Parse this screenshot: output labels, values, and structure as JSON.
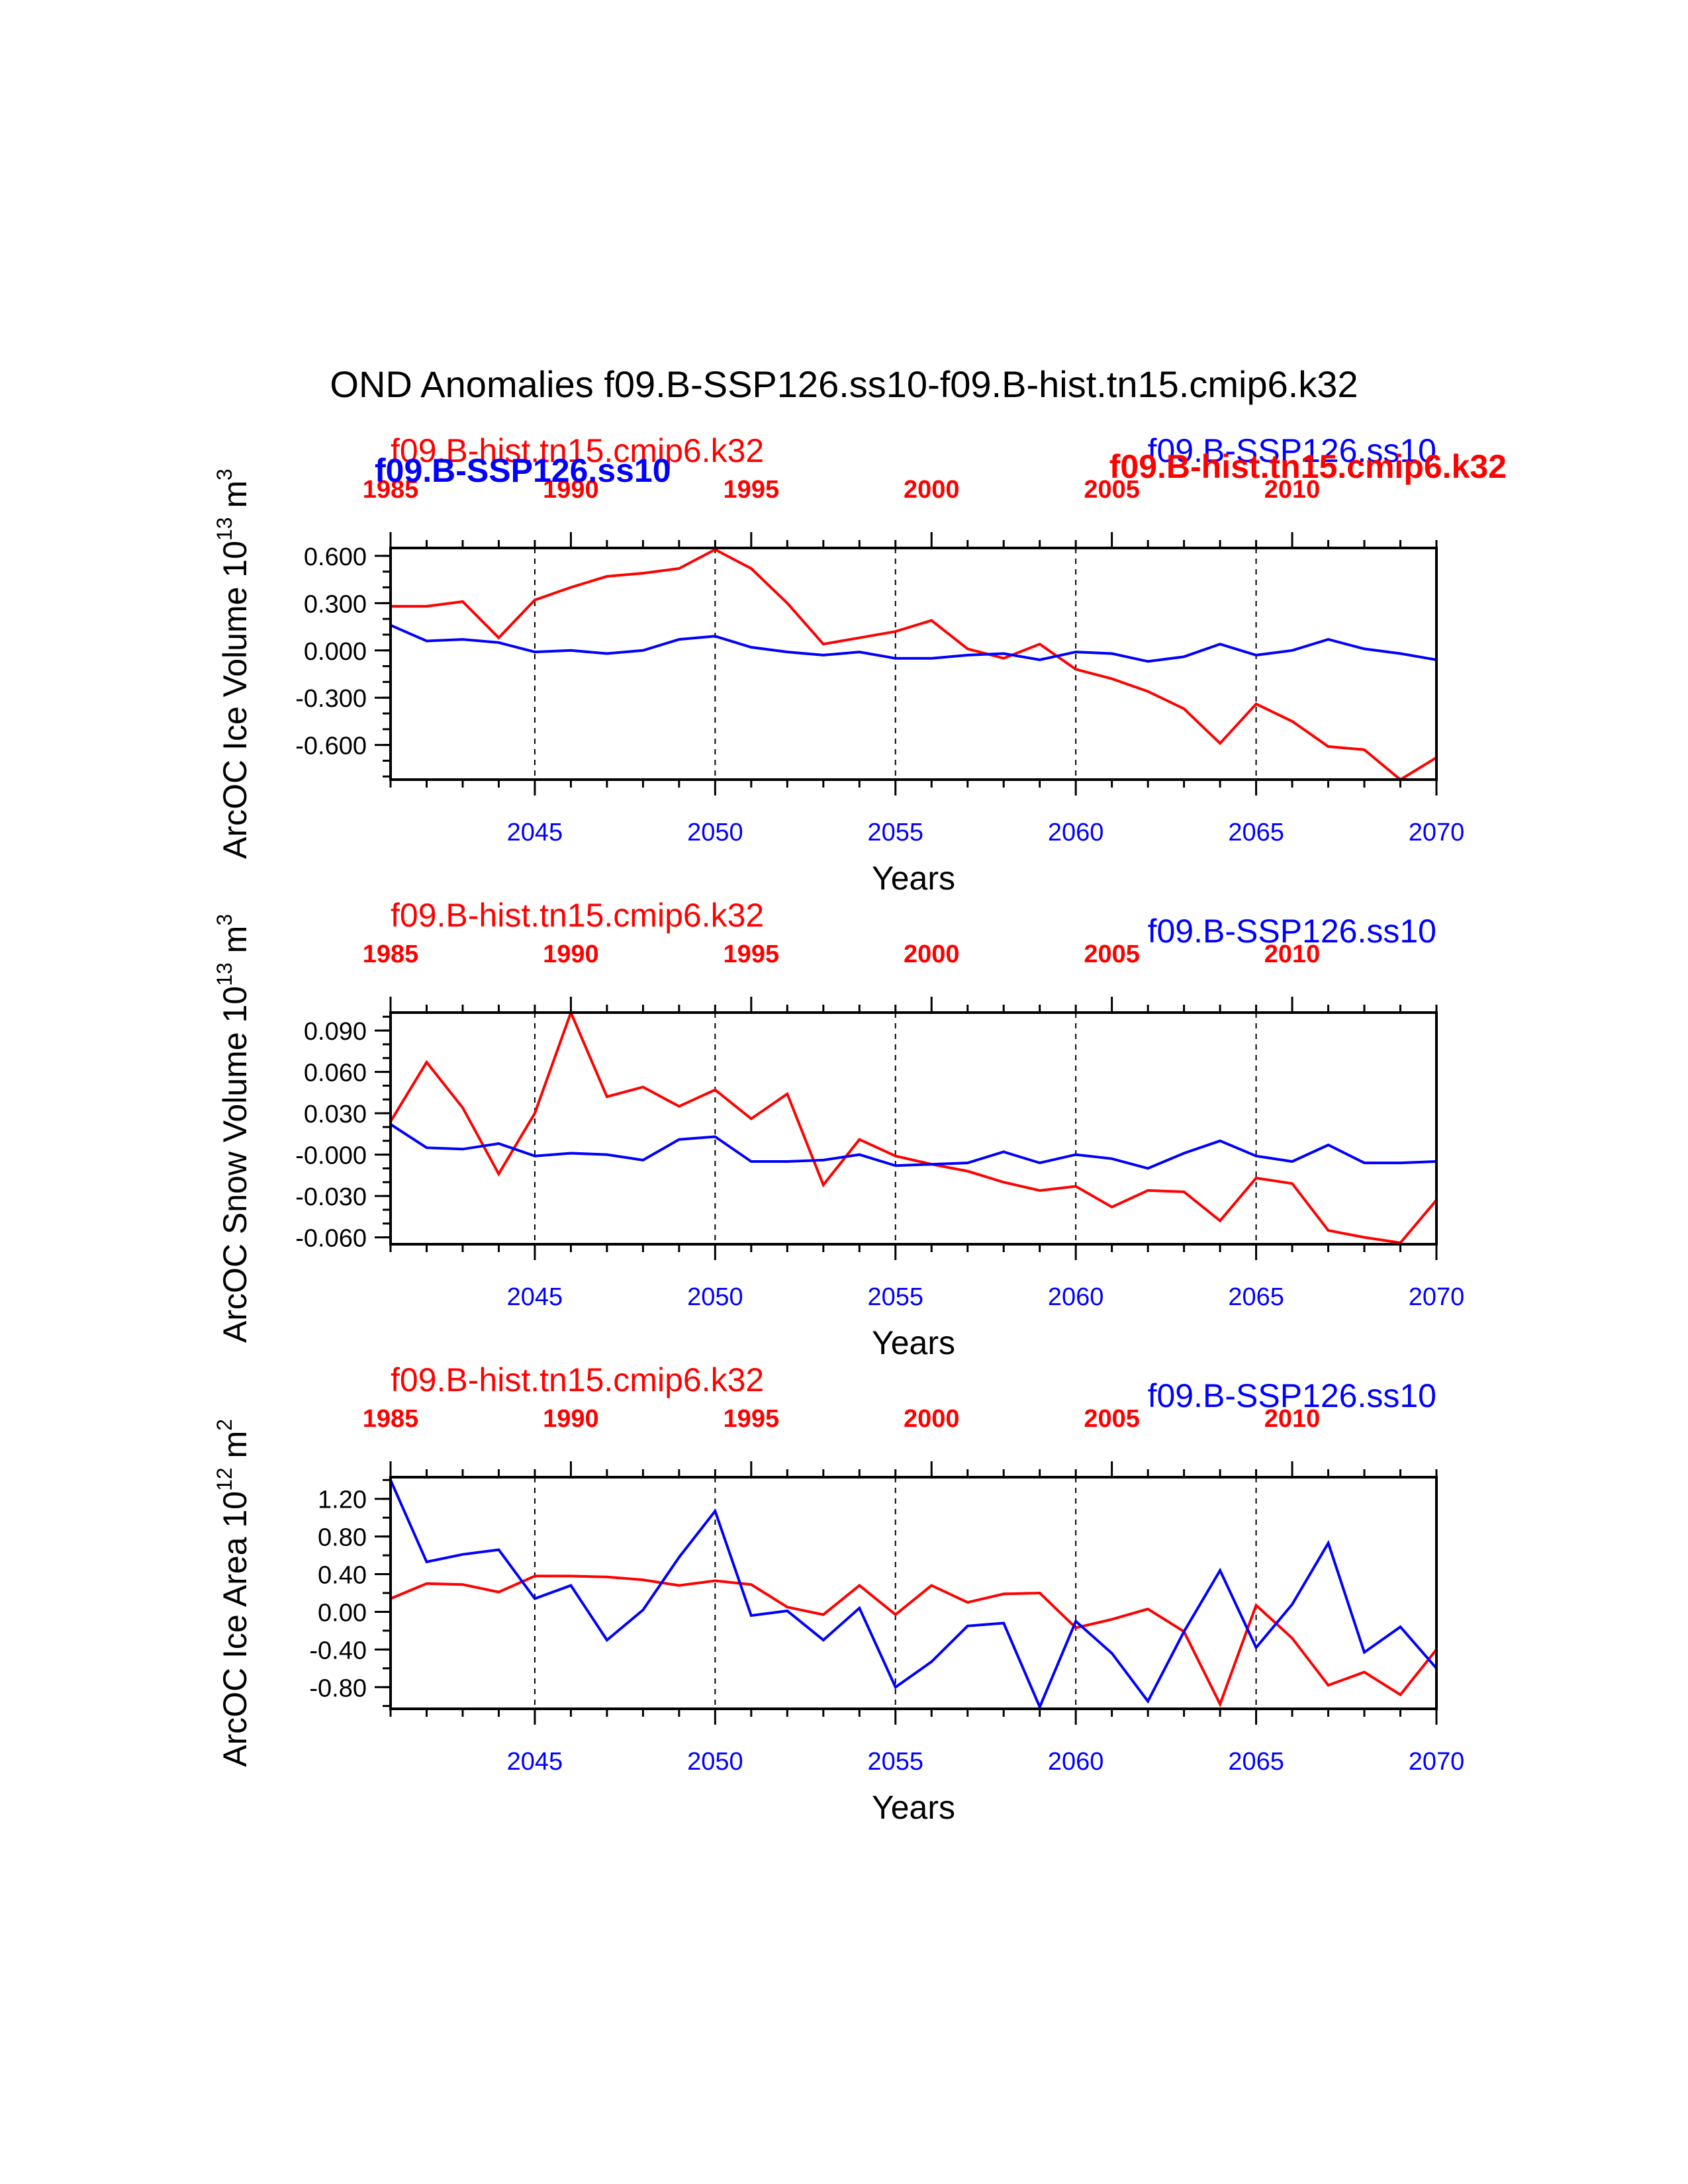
{
  "title": "OND Anomalies f09.B-SSP126.ss10-f09.B-hist.tn15.cmip6.k32",
  "colors": {
    "hist": "#ff0000",
    "ssp": "#0000ff"
  },
  "chart_data": [
    {
      "type": "line",
      "ylabel": "ArcOC Ice Volume 10",
      "ylabel_exp": "13",
      "ylabel_unit": " m",
      "ylabel_unit_exp": "3",
      "xlabel": "Years",
      "ylim": [
        -0.82,
        0.65
      ],
      "yticks": [
        "0.600",
        "0.300",
        "0.000",
        "-0.300",
        "-0.600"
      ],
      "yticks_values": [
        0.6,
        0.3,
        0.0,
        -0.3,
        -0.6
      ],
      "ylabel_minor_step": 0.1,
      "bottom_axis": {
        "range": [
          2041,
          2070
        ],
        "ticks": [
          2045,
          2050,
          2055,
          2060,
          2065,
          2070
        ]
      },
      "top_axis": {
        "range": [
          1985,
          2014
        ],
        "ticks": [
          1985,
          1990,
          1995,
          2000,
          2005,
          2010
        ]
      },
      "grid": "vertical dashed at major ticks",
      "top_left_label_red": "f09.B-hist.tn15.cmip6.k32",
      "top_left_label_blue": "f09.B-SSP126.ss10",
      "top_right_label_blue": "f09.B-SSP126.ss10",
      "top_right_label_red": "f09.B-hist.tn15.cmip6.k32",
      "series": [
        {
          "name": "f09.B-hist.tn15.cmip6.k32",
          "color": "#ff0000",
          "x": [
            1985,
            1986,
            1987,
            1988,
            1989,
            1990,
            1991,
            1992,
            1993,
            1994,
            1995,
            1996,
            1997,
            1998,
            1999,
            2000,
            2001,
            2002,
            2003,
            2004,
            2005,
            2006,
            2007,
            2008,
            2009,
            2010,
            2011,
            2012,
            2013,
            2014
          ],
          "values": [
            0.28,
            0.28,
            0.31,
            0.08,
            0.32,
            0.4,
            0.47,
            0.49,
            0.52,
            0.64,
            0.52,
            0.3,
            0.04,
            0.08,
            0.12,
            0.19,
            0.01,
            -0.05,
            0.04,
            -0.12,
            -0.18,
            -0.26,
            -0.37,
            -0.59,
            -0.34,
            -0.45,
            -0.61,
            -0.63,
            -0.82,
            -0.68
          ]
        },
        {
          "name": "f09.B-SSP126.ss10",
          "color": "#0000ff",
          "x": [
            2041,
            2042,
            2043,
            2044,
            2045,
            2046,
            2047,
            2048,
            2049,
            2050,
            2051,
            2052,
            2053,
            2054,
            2055,
            2056,
            2057,
            2058,
            2059,
            2060,
            2061,
            2062,
            2063,
            2064,
            2065,
            2066,
            2067,
            2068,
            2069,
            2070
          ],
          "values": [
            0.16,
            0.06,
            0.07,
            0.05,
            -0.01,
            0.0,
            -0.02,
            0.0,
            0.07,
            0.09,
            0.02,
            -0.01,
            -0.03,
            -0.01,
            -0.05,
            -0.05,
            -0.03,
            -0.02,
            -0.06,
            -0.01,
            -0.02,
            -0.07,
            -0.04,
            0.04,
            -0.03,
            0.0,
            0.07,
            0.01,
            -0.02,
            -0.06
          ]
        }
      ]
    },
    {
      "type": "line",
      "ylabel": "ArcOC Snow Volume 10",
      "ylabel_exp": "13",
      "ylabel_unit": " m",
      "ylabel_unit_exp": "3",
      "xlabel": "Years",
      "ylim": [
        -0.065,
        0.103
      ],
      "yticks": [
        "0.090",
        "0.060",
        "0.030",
        "-0.000",
        "-0.030",
        "-0.060"
      ],
      "yticks_values": [
        0.09,
        0.06,
        0.03,
        0.0,
        -0.03,
        -0.06
      ],
      "ylabel_minor_step": 0.01,
      "bottom_axis": {
        "range": [
          2041,
          2070
        ],
        "ticks": [
          2045,
          2050,
          2055,
          2060,
          2065,
          2070
        ]
      },
      "top_axis": {
        "range": [
          1985,
          2014
        ],
        "ticks": [
          1985,
          1990,
          1995,
          2000,
          2005,
          2010
        ]
      },
      "grid": "vertical dashed at major ticks",
      "top_left_label_red": "f09.B-hist.tn15.cmip6.k32",
      "top_right_label_blue": "f09.B-SSP126.ss10",
      "series": [
        {
          "name": "f09.B-hist.tn15.cmip6.k32",
          "color": "#ff0000",
          "x": [
            1985,
            1986,
            1987,
            1988,
            1989,
            1990,
            1991,
            1992,
            1993,
            1994,
            1995,
            1996,
            1997,
            1998,
            1999,
            2000,
            2001,
            2002,
            2003,
            2004,
            2005,
            2006,
            2007,
            2008,
            2009,
            2010,
            2011,
            2012,
            2013,
            2014
          ],
          "values": [
            0.024,
            0.067,
            0.034,
            -0.014,
            0.03,
            0.103,
            0.042,
            0.049,
            0.035,
            0.047,
            0.026,
            0.044,
            -0.022,
            0.011,
            -0.001,
            -0.007,
            -0.012,
            -0.02,
            -0.026,
            -0.023,
            -0.038,
            -0.026,
            -0.027,
            -0.048,
            -0.017,
            -0.021,
            -0.055,
            -0.06,
            -0.064,
            -0.033
          ]
        },
        {
          "name": "f09.B-SSP126.ss10",
          "color": "#0000ff",
          "x": [
            2041,
            2042,
            2043,
            2044,
            2045,
            2046,
            2047,
            2048,
            2049,
            2050,
            2051,
            2052,
            2053,
            2054,
            2055,
            2056,
            2057,
            2058,
            2059,
            2060,
            2061,
            2062,
            2063,
            2064,
            2065,
            2066,
            2067,
            2068,
            2069,
            2070
          ],
          "values": [
            0.022,
            0.005,
            0.004,
            0.008,
            -0.001,
            0.001,
            0.0,
            -0.004,
            0.011,
            0.013,
            -0.005,
            -0.005,
            -0.004,
            0.0,
            -0.008,
            -0.007,
            -0.006,
            0.002,
            -0.006,
            0.0,
            -0.003,
            -0.01,
            0.001,
            0.01,
            -0.001,
            -0.005,
            0.007,
            -0.006,
            -0.006,
            -0.005
          ]
        }
      ]
    },
    {
      "type": "line",
      "ylabel": "ArcOC Ice Area 10",
      "ylabel_exp": "12",
      "ylabel_unit": " m",
      "ylabel_unit_exp": "2",
      "xlabel": "Years",
      "ylim": [
        -1.03,
        1.43
      ],
      "yticks": [
        "1.20",
        "0.80",
        "0.40",
        "0.00",
        "-0.40",
        "-0.80"
      ],
      "yticks_values": [
        1.2,
        0.8,
        0.4,
        0.0,
        -0.4,
        -0.8
      ],
      "ylabel_minor_step": 0.2,
      "bottom_axis": {
        "range": [
          2041,
          2070
        ],
        "ticks": [
          2045,
          2050,
          2055,
          2060,
          2065,
          2070
        ]
      },
      "top_axis": {
        "range": [
          1985,
          2014
        ],
        "ticks": [
          1985,
          1990,
          1995,
          2000,
          2005,
          2010
        ]
      },
      "grid": "vertical dashed at major ticks",
      "top_left_label_red": "f09.B-hist.tn15.cmip6.k32",
      "top_right_label_blue": "f09.B-SSP126.ss10",
      "series": [
        {
          "name": "f09.B-hist.tn15.cmip6.k32",
          "color": "#ff0000",
          "x": [
            1985,
            1986,
            1987,
            1988,
            1989,
            1990,
            1991,
            1992,
            1993,
            1994,
            1995,
            1996,
            1997,
            1998,
            1999,
            2000,
            2001,
            2002,
            2003,
            2004,
            2005,
            2006,
            2007,
            2008,
            2009,
            2010,
            2011,
            2012,
            2013,
            2014
          ],
          "values": [
            0.14,
            0.3,
            0.29,
            0.21,
            0.38,
            0.38,
            0.37,
            0.34,
            0.28,
            0.33,
            0.29,
            0.05,
            -0.03,
            0.28,
            -0.03,
            0.28,
            0.1,
            0.19,
            0.2,
            -0.17,
            -0.08,
            0.03,
            -0.21,
            -0.98,
            0.07,
            -0.28,
            -0.78,
            -0.64,
            -0.88,
            -0.4
          ]
        },
        {
          "name": "f09.B-SSP126.ss10",
          "color": "#0000ff",
          "x": [
            2041,
            2042,
            2043,
            2044,
            2045,
            2046,
            2047,
            2048,
            2049,
            2050,
            2051,
            2052,
            2053,
            2054,
            2055,
            2056,
            2057,
            2058,
            2059,
            2060,
            2061,
            2062,
            2063,
            2064,
            2065,
            2066,
            2067,
            2068,
            2069,
            2070
          ],
          "values": [
            1.4,
            0.53,
            0.61,
            0.66,
            0.14,
            0.28,
            -0.3,
            0.02,
            0.58,
            1.07,
            -0.04,
            0.01,
            -0.3,
            0.04,
            -0.8,
            -0.53,
            -0.15,
            -0.12,
            -1.01,
            -0.1,
            -0.44,
            -0.95,
            -0.21,
            0.44,
            -0.38,
            0.08,
            0.73,
            -0.43,
            -0.16,
            -0.6
          ]
        }
      ]
    }
  ]
}
